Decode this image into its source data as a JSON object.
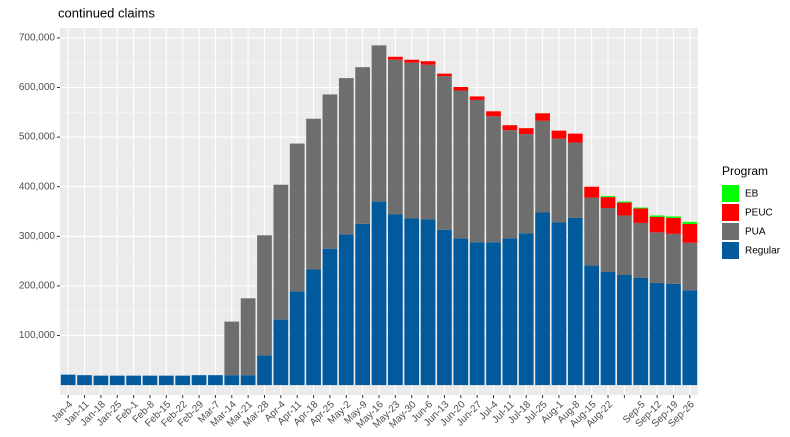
{
  "chart_data": {
    "type": "stacked_bar",
    "title": "continued claims",
    "categories": [
      "Jan-4",
      "Jan-11",
      "Jan-18",
      "Jan-25",
      "Feb-1",
      "Feb-8",
      "Feb-15",
      "Feb-22",
      "Feb-29",
      "Mar-7",
      "Mar-14",
      "Mar-21",
      "Mar-28",
      "Apr-4",
      "Apr-11",
      "Apr-18",
      "Apr-25",
      "May-2",
      "May-9",
      "May-16",
      "May-23",
      "May-30",
      "Jun-6",
      "Jun-13",
      "Jun-20",
      "Jun-27",
      "Jul-4",
      "Jul-11",
      "Jul-18",
      "Jul-25",
      "Aug-1",
      "Aug-8",
      "Aug-15",
      "Aug-22",
      null,
      "Sep-5",
      "Sep-12",
      "Sep-19",
      "Sep-26"
    ],
    "series": [
      {
        "name": "Regular",
        "color": "#005a9c",
        "values": [
          21000,
          20000,
          19000,
          19000,
          19000,
          19000,
          19000,
          19000,
          20000,
          20000,
          20000,
          20000,
          60000,
          132000,
          189000,
          233000,
          275000,
          304000,
          325000,
          370000,
          344000,
          336000,
          334000,
          313000,
          296000,
          288000,
          288000,
          296000,
          306000,
          348000,
          328000,
          337000,
          241000,
          228000,
          222000,
          216000,
          206000,
          204000,
          191000
        ]
      },
      {
        "name": "PUA",
        "color": "#6e6e6e",
        "values": [
          null,
          null,
          null,
          null,
          null,
          null,
          null,
          null,
          null,
          null,
          108000,
          155000,
          242000,
          272000,
          298000,
          304000,
          311000,
          315000,
          316000,
          315000,
          312000,
          314000,
          312000,
          310000,
          298000,
          287000,
          254000,
          218000,
          200000,
          185000,
          169000,
          152000,
          137000,
          129000,
          120000,
          111000,
          102000,
          101000,
          96000
        ]
      },
      {
        "name": "PEUC",
        "color": "#ff0000",
        "values": [
          null,
          null,
          null,
          null,
          null,
          null,
          null,
          null,
          null,
          null,
          null,
          null,
          null,
          null,
          null,
          null,
          null,
          null,
          null,
          null,
          6000,
          6000,
          7000,
          5000,
          7000,
          7000,
          10000,
          10000,
          12000,
          15000,
          16000,
          18000,
          22000,
          22000,
          26000,
          29000,
          31000,
          32000,
          38000
        ]
      },
      {
        "name": "EB",
        "color": "#00ff00",
        "values": [
          null,
          null,
          null,
          null,
          null,
          null,
          null,
          null,
          null,
          null,
          null,
          null,
          null,
          null,
          null,
          null,
          null,
          null,
          null,
          null,
          null,
          null,
          null,
          null,
          null,
          null,
          null,
          null,
          null,
          null,
          null,
          null,
          null,
          2000,
          2000,
          2000,
          3000,
          3000,
          4000
        ]
      }
    ],
    "legend_title": "Program",
    "ylim": [
      -20000,
      720000
    ],
    "yticks": [
      {
        "value": 100000,
        "label": "100,000"
      },
      {
        "value": 200000,
        "label": "200,000"
      },
      {
        "value": 300000,
        "label": "300,000"
      },
      {
        "value": 400000,
        "label": "400,000"
      },
      {
        "value": 500000,
        "label": "500,000"
      },
      {
        "value": 600000,
        "label": "600,000"
      },
      {
        "value": 700000,
        "label": "700,000"
      }
    ],
    "grid": true,
    "legend": "right"
  }
}
